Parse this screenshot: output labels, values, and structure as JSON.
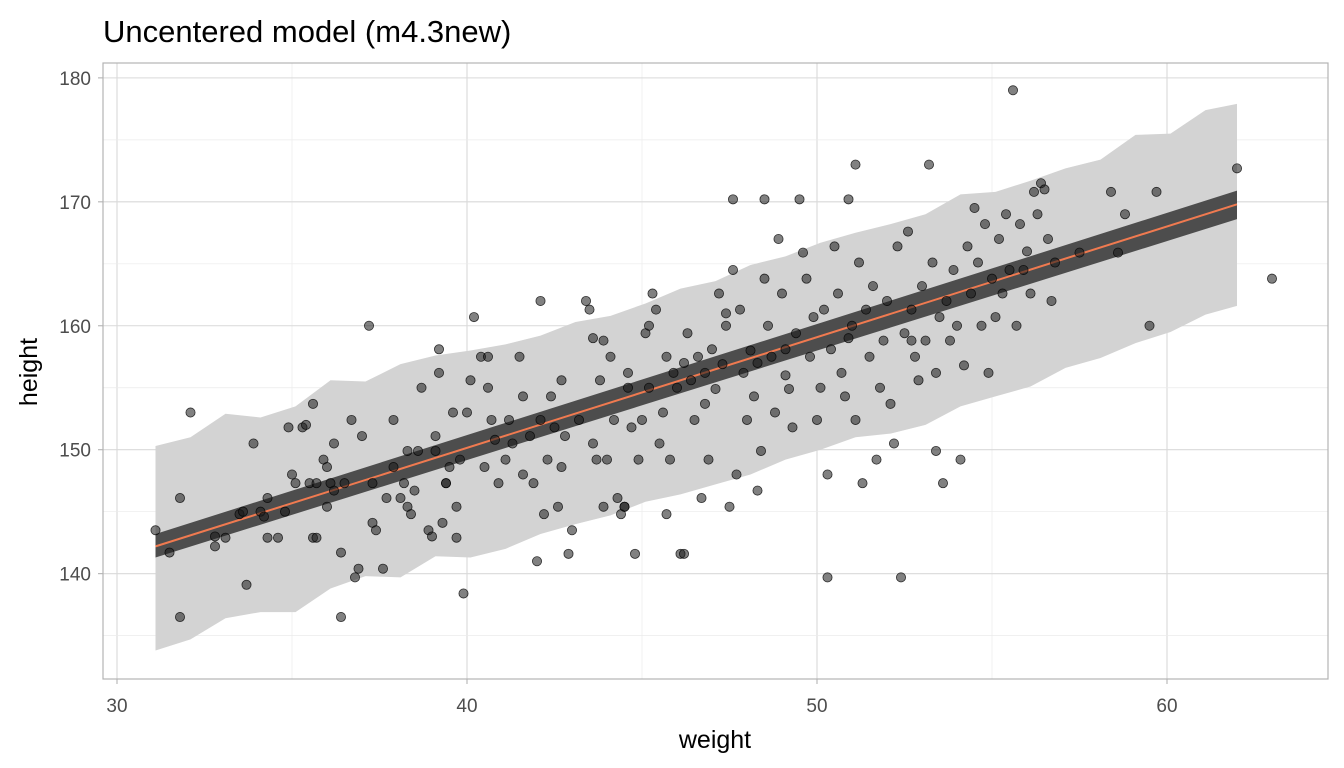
{
  "chart_data": {
    "type": "scatter",
    "title": "Uncentered model (m4.3new)",
    "xlabel": "weight",
    "ylabel": "height",
    "xlim": [
      29.6,
      64.6
    ],
    "ylim": [
      131.5,
      181.2
    ],
    "xticks": [
      30,
      40,
      50,
      60
    ],
    "yticks": [
      140,
      150,
      160,
      170,
      180
    ],
    "grid": true,
    "colors": {
      "points_fill": "#1a1a1a",
      "points_opacity": 0.55,
      "mean_line": "#f07a50",
      "mu_interval": "#4d4d4d",
      "prediction_interval": "#d3d3d3",
      "grid_major": "#d9d9d9",
      "panel_border": "#b3b3b3"
    },
    "mean_line": {
      "x": [
        31.1,
        62.0
      ],
      "y": [
        142.2,
        169.8
      ]
    },
    "mu_interval": {
      "x": [
        31.1,
        62.0
      ],
      "lower": [
        141.3,
        168.6
      ],
      "upper": [
        143.2,
        170.9
      ]
    },
    "prediction_interval": {
      "x": [
        31.1,
        32.1,
        33.1,
        34.1,
        35.1,
        36.1,
        37.1,
        38.1,
        39.1,
        40.1,
        41.1,
        42.1,
        43.1,
        44.1,
        45.1,
        46.1,
        47.1,
        48.1,
        49.1,
        50.1,
        51.1,
        52.1,
        53.1,
        54.1,
        55.1,
        56.1,
        57.1,
        58.1,
        59.1,
        60.1,
        61.1,
        62.0
      ],
      "lower": [
        133.8,
        134.7,
        136.4,
        136.9,
        136.9,
        138.8,
        139.8,
        139.7,
        141.4,
        141.3,
        142.0,
        143.2,
        144.0,
        144.7,
        145.8,
        146.4,
        147.2,
        148.0,
        149.2,
        150.0,
        151.0,
        151.3,
        152.0,
        153.5,
        154.3,
        155.1,
        156.6,
        157.4,
        158.6,
        159.5,
        160.9,
        161.6
      ],
      "upper": [
        150.3,
        151.0,
        152.9,
        152.6,
        153.5,
        155.6,
        155.5,
        156.9,
        157.6,
        158.0,
        158.5,
        159.2,
        160.3,
        160.8,
        161.8,
        163.0,
        163.6,
        164.9,
        165.6,
        166.7,
        167.5,
        168.2,
        169.0,
        170.6,
        170.8,
        171.7,
        172.7,
        173.4,
        175.4,
        175.5,
        177.4,
        177.9
      ]
    },
    "points": [
      [
        31.1,
        143.5
      ],
      [
        31.5,
        141.7
      ],
      [
        31.8,
        136.5
      ],
      [
        31.8,
        146.1
      ],
      [
        32.1,
        153.0
      ],
      [
        32.8,
        142.2
      ],
      [
        32.8,
        143.0
      ],
      [
        33.1,
        142.9
      ],
      [
        33.5,
        144.8
      ],
      [
        33.6,
        145.0
      ],
      [
        33.7,
        139.1
      ],
      [
        33.9,
        150.5
      ],
      [
        34.1,
        145.0
      ],
      [
        34.2,
        144.6
      ],
      [
        34.3,
        146.1
      ],
      [
        34.3,
        142.9
      ],
      [
        34.6,
        142.9
      ],
      [
        34.9,
        151.8
      ],
      [
        35.0,
        148.0
      ],
      [
        35.1,
        147.3
      ],
      [
        35.3,
        151.8
      ],
      [
        35.5,
        147.3
      ],
      [
        35.6,
        153.7
      ],
      [
        35.6,
        142.9
      ],
      [
        35.7,
        147.3
      ],
      [
        35.7,
        142.9
      ],
      [
        35.9,
        149.2
      ],
      [
        36.0,
        148.6
      ],
      [
        36.0,
        145.4
      ],
      [
        36.1,
        147.3
      ],
      [
        36.2,
        150.5
      ],
      [
        36.4,
        141.7
      ],
      [
        36.4,
        136.5
      ],
      [
        36.5,
        147.3
      ],
      [
        36.7,
        152.4
      ],
      [
        36.8,
        139.7
      ],
      [
        36.9,
        140.4
      ],
      [
        37.0,
        151.1
      ],
      [
        37.2,
        160.0
      ],
      [
        37.3,
        144.1
      ],
      [
        37.4,
        143.5
      ],
      [
        37.6,
        140.4
      ],
      [
        37.7,
        146.1
      ],
      [
        37.9,
        148.6
      ],
      [
        38.2,
        147.3
      ],
      [
        38.3,
        149.9
      ],
      [
        38.3,
        145.4
      ],
      [
        38.4,
        144.8
      ],
      [
        38.5,
        146.7
      ],
      [
        38.7,
        155.0
      ],
      [
        38.9,
        143.5
      ],
      [
        39.0,
        143.0
      ],
      [
        39.1,
        149.9
      ],
      [
        39.1,
        151.1
      ],
      [
        39.2,
        156.2
      ],
      [
        39.2,
        158.1
      ],
      [
        39.3,
        144.1
      ],
      [
        39.4,
        147.3
      ],
      [
        39.5,
        148.6
      ],
      [
        39.7,
        145.4
      ],
      [
        39.7,
        142.9
      ],
      [
        39.8,
        149.2
      ],
      [
        39.9,
        138.4
      ],
      [
        40.0,
        153.0
      ],
      [
        40.1,
        155.6
      ],
      [
        40.2,
        160.7
      ],
      [
        40.4,
        157.5
      ],
      [
        40.5,
        148.6
      ],
      [
        40.6,
        155.0
      ],
      [
        40.7,
        152.4
      ],
      [
        40.9,
        147.3
      ],
      [
        41.1,
        149.2
      ],
      [
        41.3,
        150.5
      ],
      [
        41.5,
        157.5
      ],
      [
        41.6,
        148.0
      ],
      [
        41.8,
        151.1
      ],
      [
        41.9,
        147.3
      ],
      [
        42.0,
        141.0
      ],
      [
        42.1,
        152.4
      ],
      [
        42.2,
        144.8
      ],
      [
        42.3,
        149.2
      ],
      [
        42.4,
        154.3
      ],
      [
        42.5,
        151.8
      ],
      [
        42.6,
        145.4
      ],
      [
        42.7,
        148.6
      ],
      [
        42.8,
        151.1
      ],
      [
        43.0,
        143.5
      ],
      [
        43.2,
        152.4
      ],
      [
        43.4,
        162.0
      ],
      [
        43.5,
        161.3
      ],
      [
        43.6,
        150.5
      ],
      [
        43.7,
        149.2
      ],
      [
        43.8,
        155.6
      ],
      [
        43.9,
        145.4
      ],
      [
        44.0,
        149.2
      ],
      [
        44.1,
        157.5
      ],
      [
        44.2,
        152.4
      ],
      [
        44.3,
        146.1
      ],
      [
        44.4,
        144.8
      ],
      [
        44.5,
        145.4
      ],
      [
        44.6,
        156.2
      ],
      [
        44.7,
        151.8
      ],
      [
        44.8,
        141.6
      ],
      [
        44.9,
        149.2
      ],
      [
        45.0,
        152.4
      ],
      [
        45.1,
        159.4
      ],
      [
        45.2,
        155.0
      ],
      [
        45.3,
        162.6
      ],
      [
        45.4,
        161.3
      ],
      [
        45.5,
        150.5
      ],
      [
        45.6,
        153.0
      ],
      [
        45.7,
        144.8
      ],
      [
        45.8,
        149.2
      ],
      [
        45.9,
        156.2
      ],
      [
        46.0,
        155.0
      ],
      [
        46.1,
        141.6
      ],
      [
        46.2,
        141.6
      ],
      [
        46.3,
        159.4
      ],
      [
        46.4,
        155.6
      ],
      [
        46.5,
        152.4
      ],
      [
        46.6,
        157.5
      ],
      [
        46.7,
        146.1
      ],
      [
        46.8,
        153.7
      ],
      [
        46.9,
        149.2
      ],
      [
        47.0,
        158.1
      ],
      [
        47.1,
        154.9
      ],
      [
        47.2,
        162.6
      ],
      [
        47.3,
        156.9
      ],
      [
        47.4,
        160.0
      ],
      [
        47.5,
        145.4
      ],
      [
        47.6,
        164.5
      ],
      [
        47.7,
        148.0
      ],
      [
        47.8,
        161.3
      ],
      [
        47.9,
        156.2
      ],
      [
        48.0,
        152.4
      ],
      [
        48.1,
        158.0
      ],
      [
        48.2,
        154.3
      ],
      [
        48.3,
        146.7
      ],
      [
        48.4,
        149.9
      ],
      [
        48.5,
        163.8
      ],
      [
        48.6,
        160.0
      ],
      [
        48.7,
        157.5
      ],
      [
        48.8,
        153.0
      ],
      [
        48.9,
        167.0
      ],
      [
        49.0,
        162.6
      ],
      [
        49.1,
        158.1
      ],
      [
        49.2,
        154.9
      ],
      [
        49.3,
        151.8
      ],
      [
        49.4,
        159.4
      ],
      [
        49.5,
        170.2
      ],
      [
        49.6,
        165.9
      ],
      [
        49.7,
        163.8
      ],
      [
        49.8,
        157.5
      ],
      [
        49.9,
        160.7
      ],
      [
        50.0,
        152.4
      ],
      [
        50.1,
        155.0
      ],
      [
        50.2,
        161.3
      ],
      [
        50.3,
        148.0
      ],
      [
        50.4,
        158.1
      ],
      [
        50.5,
        166.4
      ],
      [
        50.6,
        162.6
      ],
      [
        50.7,
        156.2
      ],
      [
        50.8,
        154.3
      ],
      [
        50.9,
        170.2
      ],
      [
        51.0,
        160.0
      ],
      [
        51.1,
        152.4
      ],
      [
        51.2,
        165.1
      ],
      [
        51.3,
        147.3
      ],
      [
        51.4,
        161.3
      ],
      [
        51.5,
        157.5
      ],
      [
        51.6,
        163.2
      ],
      [
        51.7,
        149.2
      ],
      [
        51.8,
        155.0
      ],
      [
        51.9,
        158.8
      ],
      [
        52.0,
        162.0
      ],
      [
        52.1,
        153.7
      ],
      [
        52.2,
        150.5
      ],
      [
        52.3,
        166.4
      ],
      [
        52.4,
        139.7
      ],
      [
        52.5,
        159.4
      ],
      [
        52.6,
        167.6
      ],
      [
        52.7,
        161.3
      ],
      [
        52.8,
        157.5
      ],
      [
        52.9,
        155.6
      ],
      [
        53.0,
        163.2
      ],
      [
        53.1,
        158.8
      ],
      [
        53.2,
        173.0
      ],
      [
        53.3,
        165.1
      ],
      [
        53.4,
        156.2
      ],
      [
        53.5,
        160.7
      ],
      [
        53.6,
        147.3
      ],
      [
        53.7,
        162.0
      ],
      [
        53.8,
        158.8
      ],
      [
        53.9,
        164.5
      ],
      [
        54.0,
        160.0
      ],
      [
        54.1,
        149.2
      ],
      [
        54.2,
        156.8
      ],
      [
        54.3,
        166.4
      ],
      [
        54.4,
        162.6
      ],
      [
        54.5,
        169.5
      ],
      [
        54.6,
        165.1
      ],
      [
        54.7,
        160.0
      ],
      [
        54.8,
        168.2
      ],
      [
        54.9,
        156.2
      ],
      [
        55.0,
        163.8
      ],
      [
        55.1,
        160.7
      ],
      [
        55.2,
        167.0
      ],
      [
        55.3,
        162.6
      ],
      [
        55.4,
        169.0
      ],
      [
        55.5,
        164.5
      ],
      [
        55.6,
        179.0
      ],
      [
        55.7,
        160.0
      ],
      [
        55.8,
        168.2
      ],
      [
        55.9,
        164.5
      ],
      [
        56.0,
        166.0
      ],
      [
        56.1,
        162.6
      ],
      [
        56.2,
        170.8
      ],
      [
        56.3,
        169.0
      ],
      [
        56.4,
        171.5
      ],
      [
        56.5,
        171.0
      ],
      [
        56.6,
        167.0
      ],
      [
        56.7,
        162.0
      ],
      [
        56.8,
        165.1
      ],
      [
        57.5,
        165.9
      ],
      [
        58.4,
        170.8
      ],
      [
        58.6,
        165.9
      ],
      [
        58.8,
        169.0
      ],
      [
        59.5,
        160.0
      ],
      [
        59.7,
        170.8
      ],
      [
        62.0,
        172.7
      ],
      [
        63.0,
        163.8
      ],
      [
        38.1,
        146.1
      ],
      [
        37.9,
        152.4
      ],
      [
        39.6,
        153.0
      ],
      [
        40.8,
        150.8
      ],
      [
        41.2,
        152.4
      ],
      [
        42.7,
        155.6
      ],
      [
        43.9,
        158.8
      ],
      [
        44.6,
        155.0
      ],
      [
        45.7,
        157.5
      ],
      [
        46.2,
        157.0
      ],
      [
        47.4,
        161.0
      ],
      [
        48.3,
        157.0
      ],
      [
        49.1,
        156.0
      ],
      [
        50.9,
        159.0
      ],
      [
        52.7,
        158.8
      ],
      [
        53.4,
        149.9
      ],
      [
        51.1,
        173.0
      ],
      [
        50.3,
        139.7
      ],
      [
        48.5,
        170.2
      ],
      [
        47.6,
        170.2
      ],
      [
        46.8,
        156.2
      ],
      [
        45.2,
        160.0
      ],
      [
        44.5,
        145.4
      ],
      [
        43.6,
        159.0
      ],
      [
        42.9,
        141.6
      ],
      [
        42.1,
        162.0
      ],
      [
        41.6,
        154.3
      ],
      [
        40.6,
        157.5
      ],
      [
        39.4,
        147.3
      ],
      [
        38.6,
        149.9
      ],
      [
        37.3,
        147.3
      ],
      [
        36.2,
        146.7
      ],
      [
        35.4,
        152.0
      ],
      [
        34.8,
        145.0
      ]
    ]
  }
}
